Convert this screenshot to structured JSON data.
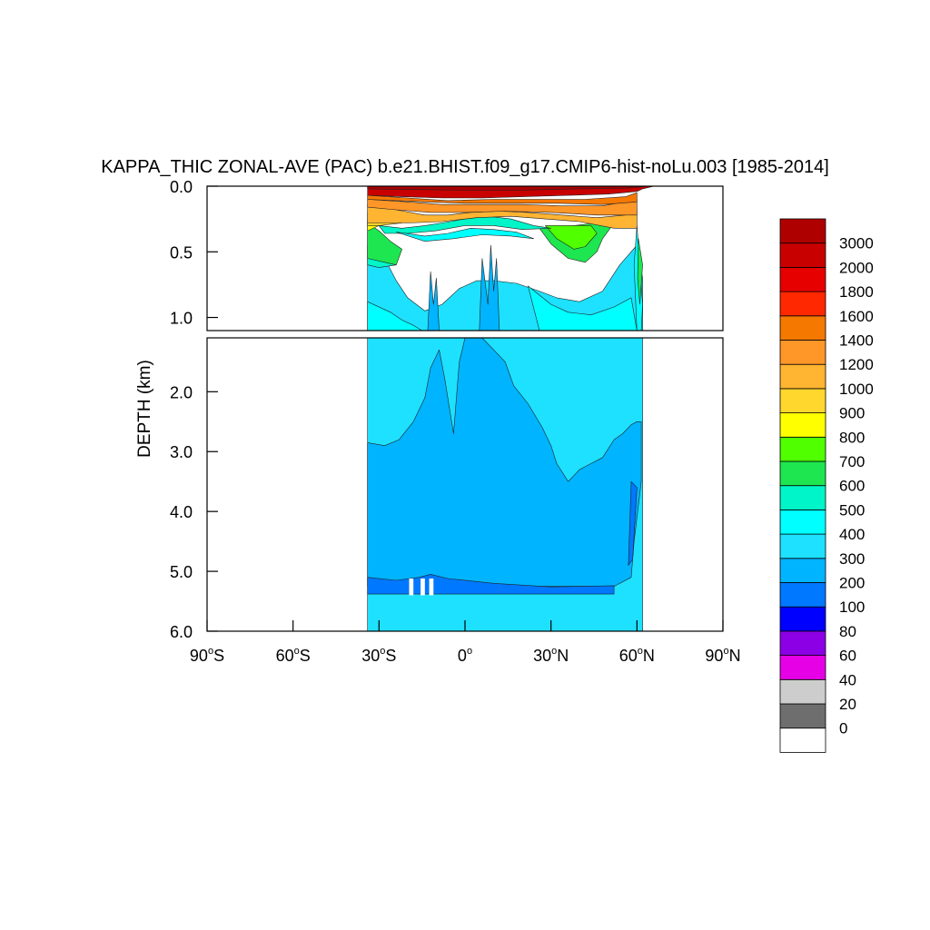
{
  "chart_data": {
    "type": "heatmap",
    "title": "KAPPA_THIC ZONAL-AVE (PAC) b.e21.BHIST.f09_g17.CMIP6-hist-noLu.003 [1985-2014]",
    "ylabel": "DEPTH (km)",
    "xlabel": "",
    "xlim": [
      -90,
      90
    ],
    "ylim": [
      0,
      6
    ],
    "y_reversed": true,
    "axis_break_depth_km": 1.1,
    "x_ticks": [
      {
        "value": -90,
        "label": "90",
        "hemi": "S"
      },
      {
        "value": -60,
        "label": "60",
        "hemi": "S"
      },
      {
        "value": -30,
        "label": "30",
        "hemi": "S"
      },
      {
        "value": 0,
        "label": "0",
        "hemi": ""
      },
      {
        "value": 30,
        "label": "30",
        "hemi": "N"
      },
      {
        "value": 60,
        "label": "60",
        "hemi": "N"
      },
      {
        "value": 90,
        "label": "90",
        "hemi": "N"
      }
    ],
    "y_ticks_upper": [
      {
        "value": 0.0,
        "label": "0.0"
      },
      {
        "value": 0.5,
        "label": "0.5"
      },
      {
        "value": 1.0,
        "label": "1.0"
      }
    ],
    "y_ticks_lower": [
      {
        "value": 2.0,
        "label": "2.0"
      },
      {
        "value": 3.0,
        "label": "3.0"
      },
      {
        "value": 4.0,
        "label": "4.0"
      },
      {
        "value": 5.0,
        "label": "5.0"
      },
      {
        "value": 6.0,
        "label": "6.0"
      }
    ],
    "colorbar": {
      "levels": [
        "0",
        "20",
        "40",
        "60",
        "80",
        "100",
        "200",
        "300",
        "400",
        "500",
        "600",
        "700",
        "800",
        "900",
        "1000",
        "1200",
        "1400",
        "1600",
        "1800",
        "2000",
        "3000"
      ],
      "colors": [
        "#ffffff",
        "#6e6e6e",
        "#cdcdcd",
        "#e600e6",
        "#8c00e6",
        "#0000ff",
        "#0078ff",
        "#00b4ff",
        "#1ee1ff",
        "#00ffff",
        "#00f5c8",
        "#1ee650",
        "#50ff00",
        "#ffff00",
        "#ffd72d",
        "#ffb432",
        "#ff9628",
        "#f57800",
        "#ff2800",
        "#e60000",
        "#c80000",
        "#af0000"
      ]
    },
    "regions": [
      {
        "level": 8,
        "points": [
          [
            -34,
            1.1
          ],
          [
            62,
            1.1
          ],
          [
            62,
            6.0
          ],
          [
            -34,
            6.0
          ]
        ]
      },
      {
        "level": 7,
        "points": [
          [
            -34,
            2.85
          ],
          [
            -28,
            2.9
          ],
          [
            -23,
            2.8
          ],
          [
            -18,
            2.5
          ],
          [
            -14,
            2.1
          ],
          [
            -12,
            1.6
          ],
          [
            -9,
            1.3
          ],
          [
            -7,
            1.8
          ],
          [
            -4,
            2.7
          ],
          [
            -2,
            1.5
          ],
          [
            0,
            1.1
          ],
          [
            6,
            1.1
          ],
          [
            10,
            1.3
          ],
          [
            14,
            1.5
          ],
          [
            17,
            1.9
          ],
          [
            22,
            2.2
          ],
          [
            27,
            2.6
          ],
          [
            30,
            2.9
          ],
          [
            32,
            3.2
          ],
          [
            36,
            3.5
          ],
          [
            40,
            3.3
          ],
          [
            44,
            3.2
          ],
          [
            48,
            3.1
          ],
          [
            52,
            2.8
          ],
          [
            55,
            2.7
          ],
          [
            58,
            2.55
          ],
          [
            60,
            2.5
          ],
          [
            61.5,
            2.5
          ],
          [
            61.5,
            3.5
          ],
          [
            59,
            4.5
          ],
          [
            58,
            5.1
          ],
          [
            52,
            5.25
          ],
          [
            -34,
            5.25
          ]
        ]
      },
      {
        "level": 6,
        "points": [
          [
            -34,
            5.1
          ],
          [
            -24,
            5.15
          ],
          [
            -16,
            5.1
          ],
          [
            -12,
            5.05
          ],
          [
            -6,
            5.12
          ],
          [
            10,
            5.2
          ],
          [
            30,
            5.26
          ],
          [
            52,
            5.24
          ],
          [
            52,
            5.38
          ],
          [
            -34,
            5.38
          ]
        ]
      },
      {
        "level": 6,
        "points": [
          [
            58,
            3.5
          ],
          [
            60,
            3.6
          ],
          [
            58.5,
            4.8
          ],
          [
            57,
            4.9
          ]
        ]
      },
      {
        "level": 8,
        "points": [
          [
            -34,
            0.45
          ],
          [
            -28,
            0.55
          ],
          [
            -24,
            0.72
          ],
          [
            -20,
            0.85
          ],
          [
            -14,
            0.95
          ],
          [
            -8,
            0.9
          ],
          [
            -2,
            0.78
          ],
          [
            4,
            0.72
          ],
          [
            10,
            0.72
          ],
          [
            18,
            0.74
          ],
          [
            26,
            0.8
          ],
          [
            32,
            0.85
          ],
          [
            40,
            0.88
          ],
          [
            48,
            0.8
          ],
          [
            54,
            0.6
          ],
          [
            60,
            0.45
          ],
          [
            62,
            0.7
          ],
          [
            62,
            1.1
          ],
          [
            -34,
            1.1
          ]
        ]
      },
      {
        "level": 7,
        "points": [
          [
            -13,
            1.1
          ],
          [
            -12,
            0.65
          ],
          [
            -11,
            0.9
          ],
          [
            -10,
            0.7
          ],
          [
            -9,
            1.1
          ]
        ]
      },
      {
        "level": 7,
        "points": [
          [
            5,
            1.1
          ],
          [
            6,
            0.55
          ],
          [
            8,
            0.9
          ],
          [
            9,
            0.45
          ],
          [
            10,
            0.8
          ],
          [
            11,
            0.55
          ],
          [
            12,
            1.1
          ]
        ]
      },
      {
        "level": 9,
        "points": [
          [
            -34,
            0.88
          ],
          [
            -26,
            0.96
          ],
          [
            -22,
            1.02
          ],
          [
            -18,
            1.06
          ],
          [
            -15,
            1.1
          ],
          [
            -34,
            1.1
          ]
        ]
      },
      {
        "level": 9,
        "points": [
          [
            22,
            0.76
          ],
          [
            30,
            0.9
          ],
          [
            36,
            0.96
          ],
          [
            44,
            0.98
          ],
          [
            52,
            0.92
          ],
          [
            58,
            0.85
          ],
          [
            60,
            1.1
          ],
          [
            26,
            1.1
          ]
        ]
      },
      {
        "level": 10,
        "points": [
          [
            -34,
            0.35
          ],
          [
            -30,
            0.4
          ],
          [
            -26,
            0.5
          ],
          [
            -24,
            0.6
          ],
          [
            -30,
            0.62
          ],
          [
            -34,
            0.6
          ]
        ]
      },
      {
        "level": 11,
        "points": [
          [
            -34,
            0.28
          ],
          [
            -30,
            0.34
          ],
          [
            -26,
            0.42
          ],
          [
            -22,
            0.48
          ],
          [
            -24,
            0.6
          ],
          [
            -28,
            0.58
          ],
          [
            -34,
            0.55
          ]
        ]
      },
      {
        "level": 11,
        "points": [
          [
            26,
            0.32
          ],
          [
            30,
            0.44
          ],
          [
            36,
            0.55
          ],
          [
            42,
            0.58
          ],
          [
            46,
            0.5
          ],
          [
            48,
            0.4
          ],
          [
            52,
            0.28
          ],
          [
            46,
            0.28
          ],
          [
            38,
            0.3
          ]
        ]
      },
      {
        "level": 12,
        "points": [
          [
            28,
            0.3
          ],
          [
            32,
            0.4
          ],
          [
            38,
            0.48
          ],
          [
            42,
            0.46
          ],
          [
            46,
            0.36
          ],
          [
            44,
            0.3
          ],
          [
            36,
            0.3
          ]
        ]
      },
      {
        "level": 10,
        "points": [
          [
            -30,
            0.3
          ],
          [
            -22,
            0.32
          ],
          [
            -14,
            0.3
          ],
          [
            -8,
            0.28
          ],
          [
            0,
            0.25
          ],
          [
            8,
            0.23
          ],
          [
            16,
            0.25
          ],
          [
            24,
            0.3
          ],
          [
            30,
            0.32
          ],
          [
            20,
            0.33
          ],
          [
            10,
            0.3
          ],
          [
            0,
            0.3
          ],
          [
            -10,
            0.34
          ],
          [
            -20,
            0.36
          ],
          [
            -28,
            0.36
          ]
        ]
      },
      {
        "level": 9,
        "points": [
          [
            -24,
            0.35
          ],
          [
            -14,
            0.38
          ],
          [
            -6,
            0.36
          ],
          [
            2,
            0.32
          ],
          [
            10,
            0.33
          ],
          [
            18,
            0.35
          ],
          [
            24,
            0.4
          ],
          [
            16,
            0.38
          ],
          [
            6,
            0.37
          ],
          [
            -4,
            0.4
          ],
          [
            -14,
            0.42
          ]
        ]
      },
      {
        "level": 13,
        "points": [
          [
            -34,
            0.26
          ],
          [
            -30,
            0.3
          ],
          [
            -34,
            0.34
          ]
        ]
      },
      {
        "level": 14,
        "points": [
          [
            -34,
            0.2
          ],
          [
            -28,
            0.24
          ],
          [
            -22,
            0.28
          ],
          [
            -30,
            0.3
          ],
          [
            -34,
            0.3
          ]
        ]
      },
      {
        "level": 15,
        "points": [
          [
            -34,
            0.14
          ],
          [
            -24,
            0.18
          ],
          [
            -14,
            0.22
          ],
          [
            -6,
            0.22
          ],
          [
            2,
            0.2
          ],
          [
            12,
            0.19
          ],
          [
            22,
            0.2
          ],
          [
            34,
            0.22
          ],
          [
            46,
            0.24
          ],
          [
            56,
            0.22
          ],
          [
            60,
            0.18
          ],
          [
            60,
            0.32
          ],
          [
            52,
            0.32
          ],
          [
            40,
            0.27
          ],
          [
            28,
            0.25
          ],
          [
            16,
            0.23
          ],
          [
            4,
            0.24
          ],
          [
            -8,
            0.27
          ],
          [
            -20,
            0.28
          ],
          [
            -34,
            0.28
          ]
        ]
      },
      {
        "level": 16,
        "points": [
          [
            -34,
            0.1
          ],
          [
            -20,
            0.12
          ],
          [
            -8,
            0.14
          ],
          [
            6,
            0.14
          ],
          [
            20,
            0.14
          ],
          [
            34,
            0.15
          ],
          [
            48,
            0.15
          ],
          [
            60,
            0.1
          ],
          [
            60,
            0.22
          ],
          [
            46,
            0.22
          ],
          [
            30,
            0.2
          ],
          [
            14,
            0.19
          ],
          [
            0,
            0.2
          ],
          [
            -12,
            0.2
          ],
          [
            -24,
            0.18
          ],
          [
            -34,
            0.16
          ]
        ]
      },
      {
        "level": 17,
        "points": [
          [
            -34,
            0.07
          ],
          [
            -20,
            0.09
          ],
          [
            -6,
            0.11
          ],
          [
            10,
            0.1
          ],
          [
            26,
            0.1
          ],
          [
            42,
            0.1
          ],
          [
            56,
            0.08
          ],
          [
            60,
            0.05
          ],
          [
            60,
            0.12
          ],
          [
            48,
            0.14
          ],
          [
            32,
            0.13
          ],
          [
            16,
            0.13
          ],
          [
            0,
            0.13
          ],
          [
            -14,
            0.12
          ],
          [
            -34,
            0.1
          ]
        ]
      },
      {
        "level": 20,
        "points": [
          [
            -34,
            0.0
          ],
          [
            66,
            0.0
          ],
          [
            62,
            0.02
          ],
          [
            60,
            0.04
          ],
          [
            50,
            0.06
          ],
          [
            36,
            0.07
          ],
          [
            20,
            0.08
          ],
          [
            6,
            0.09
          ],
          [
            -8,
            0.09
          ],
          [
            -22,
            0.08
          ],
          [
            -34,
            0.07
          ]
        ]
      },
      {
        "level": 21,
        "points": [
          [
            -34,
            0.0
          ],
          [
            64,
            0.0
          ],
          [
            56,
            0.015
          ],
          [
            40,
            0.02
          ],
          [
            20,
            0.03
          ],
          [
            0,
            0.03
          ],
          [
            -20,
            0.025
          ],
          [
            -34,
            0.02
          ]
        ]
      },
      {
        "level": 9,
        "points": [
          [
            60,
            0.3
          ],
          [
            62,
            0.9
          ],
          [
            61.5,
            1.1
          ],
          [
            60,
            1.1
          ],
          [
            59,
            0.6
          ]
        ]
      },
      {
        "level": 11,
        "points": [
          [
            60.5,
            0.4
          ],
          [
            62,
            0.6
          ],
          [
            61,
            0.9
          ],
          [
            60.2,
            0.7
          ]
        ]
      }
    ],
    "seafloor_gaps": [
      [
        -19.5,
        -18
      ],
      [
        -15.5,
        -14
      ],
      [
        -12.5,
        -11
      ]
    ]
  }
}
